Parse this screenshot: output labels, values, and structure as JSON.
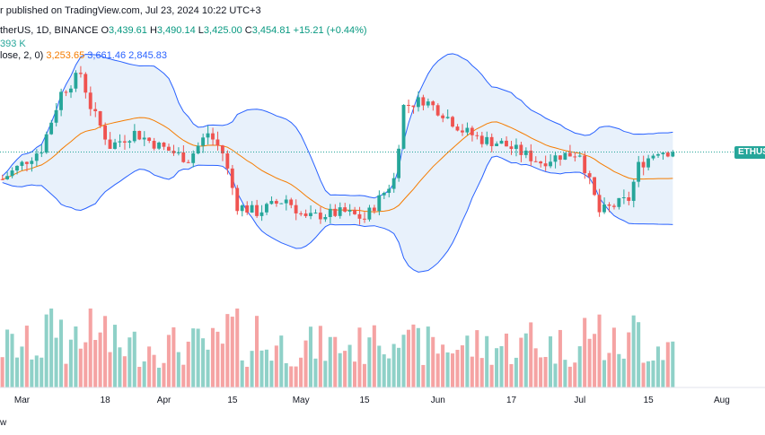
{
  "header": {
    "published": "r published on TradingView.com, Jul 23, 2024 10:22 UTC+3",
    "symbol": "therUS, 1D, BINANCE",
    "o_label": "O",
    "o_value": "3,439.61",
    "h_label": "H",
    "h_value": "3,490.14",
    "l_label": "L",
    "l_value": "3,425.00",
    "c_label": "C",
    "c_value": "3,454.81",
    "change": "+15.21 (+0.44%)",
    "volume_value": "393 K",
    "bb_label": "lose, 2, 0)",
    "bb_basis": "3,253.65",
    "bb_upper": "3,661.46",
    "bb_lower": "2,845.83"
  },
  "price_tag": "ETHUSDT",
  "footer": "w",
  "colors": {
    "up": "#26a69a",
    "down": "#ef5350",
    "vol_up": "#8fd1c8",
    "vol_down": "#f5a3a3",
    "bb_line": "#2962ff",
    "bb_fill": "#e8f1fb",
    "basis": "#f57c00",
    "last_price_line": "#26a69a"
  },
  "chart_data": {
    "type": "candlestick",
    "interval": "1D",
    "x_tick_labels": [
      "Mar",
      "18",
      "Apr",
      "15",
      "May",
      "15",
      "Jun",
      "17",
      "Jul",
      "15",
      "Aug"
    ],
    "y_range": [
      2300,
      4400
    ],
    "last_price": 3454.81,
    "candles_count": 140,
    "volume_range": [
      0,
      1
    ],
    "indicators": [
      "Bollinger Bands (close, 2, 0)",
      "Volume"
    ]
  }
}
